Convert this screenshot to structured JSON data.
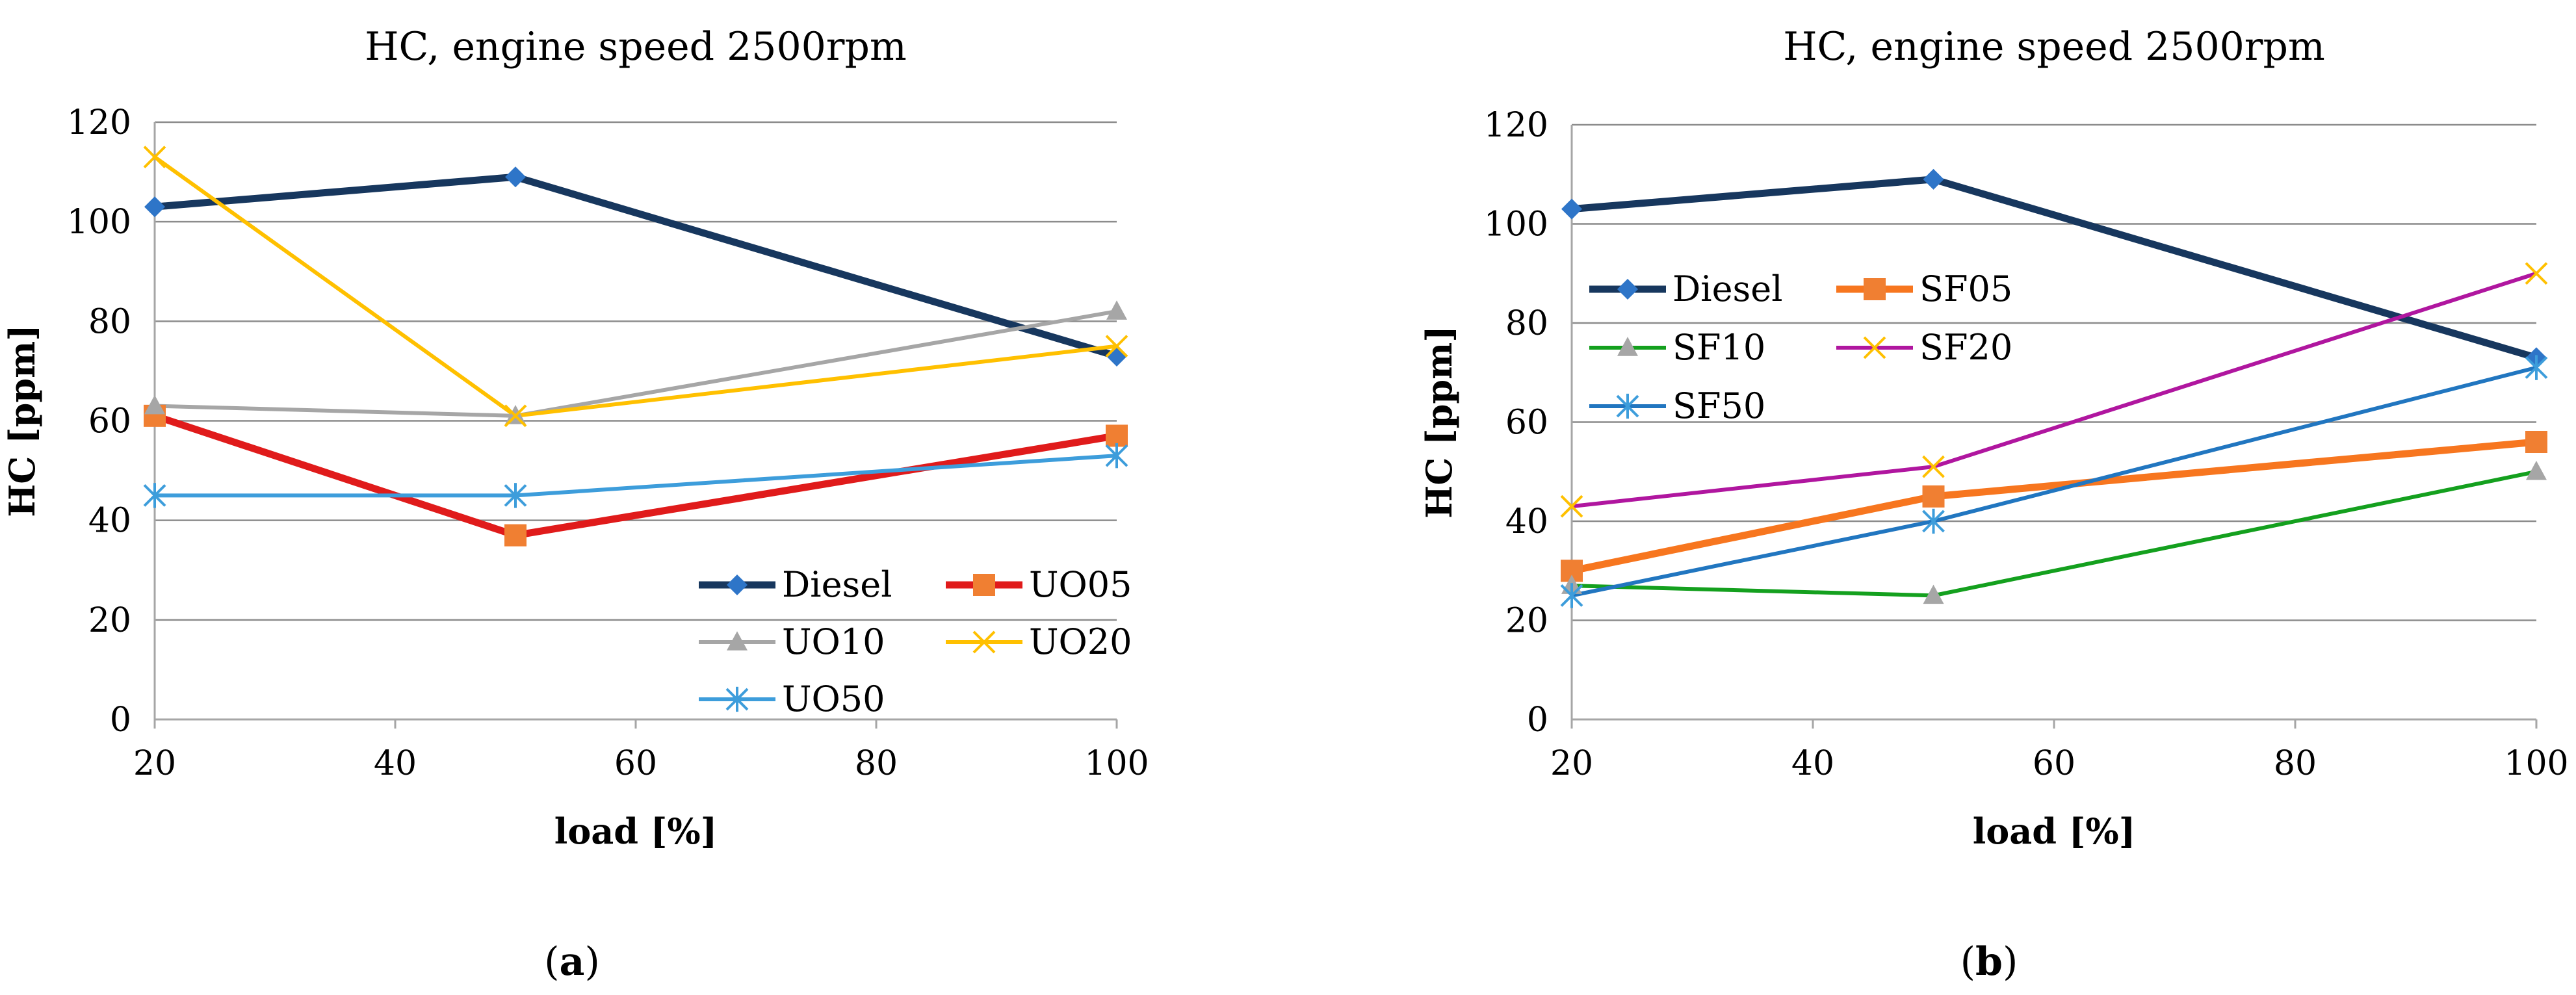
{
  "chart_data": [
    {
      "type": "line",
      "title": "HC, engine speed 2500rpm",
      "xlabel": "load [%]",
      "ylabel": "HC [ppm]",
      "panel_label": "a",
      "xlim": [
        20,
        100
      ],
      "ylim": [
        0,
        120
      ],
      "x_ticks": [
        20,
        40,
        60,
        80,
        100
      ],
      "y_ticks": [
        0,
        20,
        40,
        60,
        80,
        100,
        120
      ],
      "x": [
        20,
        50,
        100
      ],
      "legend_columns": 2,
      "legend_position": "bottom-right",
      "series": [
        {
          "name": "Diesel",
          "values": [
            103,
            109,
            73
          ],
          "color": "#17375e",
          "marker": "diamond",
          "marker_color": "#2e75c8",
          "width": 11
        },
        {
          "name": "UO05",
          "values": [
            61,
            37,
            57
          ],
          "color": "#e01b1b",
          "marker": "square",
          "marker_color": "#f07f32",
          "width": 11
        },
        {
          "name": "UO10",
          "values": [
            63,
            61,
            82
          ],
          "color": "#a6a6a6",
          "marker": "triangle",
          "marker_color": "#a6a6a6",
          "width": 6
        },
        {
          "name": "UO20",
          "values": [
            113,
            61,
            75
          ],
          "color": "#ffc000",
          "marker": "x",
          "marker_color": "#ffc000",
          "width": 6
        },
        {
          "name": "UO50",
          "values": [
            45,
            45,
            53
          ],
          "color": "#3d9ddb",
          "marker": "star",
          "marker_color": "#3d9ddb",
          "width": 6
        }
      ]
    },
    {
      "type": "line",
      "title": "HC, engine speed 2500rpm",
      "xlabel": "load [%]",
      "ylabel": "HC [ppm]",
      "panel_label": "b",
      "xlim": [
        20,
        100
      ],
      "ylim": [
        0,
        120
      ],
      "x_ticks": [
        20,
        40,
        60,
        80,
        100
      ],
      "y_ticks": [
        0,
        20,
        40,
        60,
        80,
        100,
        120
      ],
      "x": [
        20,
        50,
        100
      ],
      "legend_columns": 2,
      "legend_position": "top-left",
      "series": [
        {
          "name": "Diesel",
          "values": [
            103,
            109,
            73
          ],
          "color": "#17375e",
          "marker": "diamond",
          "marker_color": "#2e75c8",
          "width": 11
        },
        {
          "name": "SF05",
          "values": [
            30,
            45,
            56
          ],
          "color": "#f7761f",
          "marker": "square",
          "marker_color": "#f07f32",
          "width": 11
        },
        {
          "name": "SF10",
          "values": [
            27,
            25,
            50
          ],
          "color": "#14a01e",
          "marker": "triangle",
          "marker_color": "#a6a6a6",
          "width": 6
        },
        {
          "name": "SF20",
          "values": [
            43,
            51,
            90
          ],
          "color": "#b0169f",
          "marker": "x",
          "marker_color": "#ffc000",
          "width": 6
        },
        {
          "name": "SF50",
          "values": [
            25,
            40,
            71
          ],
          "color": "#2176c0",
          "marker": "star",
          "marker_color": "#3d9ddb",
          "width": 6
        }
      ]
    }
  ]
}
